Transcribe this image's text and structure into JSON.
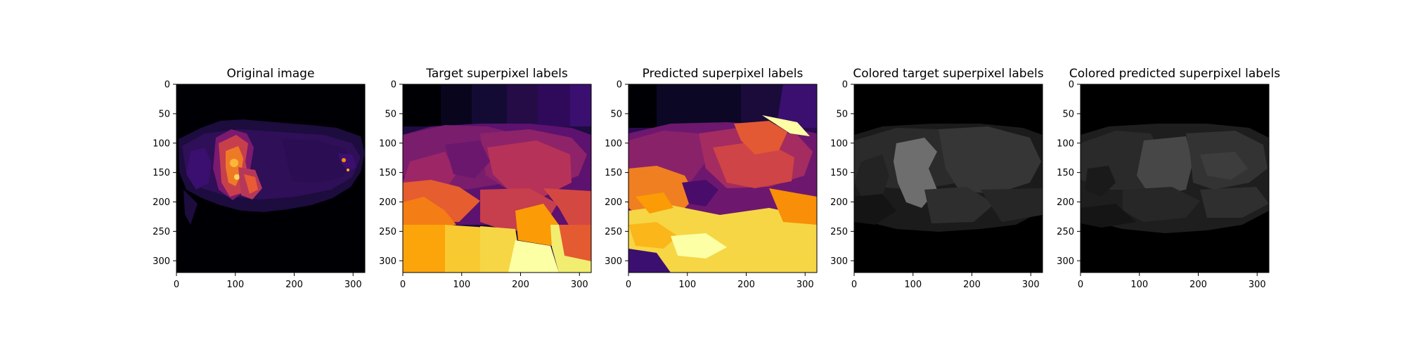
{
  "panels": [
    {
      "title": "Original image",
      "colormap": "inferno-mri"
    },
    {
      "title": "Target superpixel labels",
      "colormap": "inferno-segments"
    },
    {
      "title": "Predicted superpixel labels",
      "colormap": "inferno-segments"
    },
    {
      "title": "Colored target superpixel labels",
      "colormap": "gray-segments"
    },
    {
      "title": "Colored predicted superpixel labels",
      "colormap": "gray-segments"
    }
  ],
  "axes": {
    "x_ticks": [
      "0",
      "100",
      "200",
      "300"
    ],
    "y_ticks": [
      "0",
      "50",
      "100",
      "150",
      "200",
      "250",
      "300"
    ],
    "x_range": [
      0,
      320
    ],
    "y_range": [
      0,
      320
    ]
  }
}
